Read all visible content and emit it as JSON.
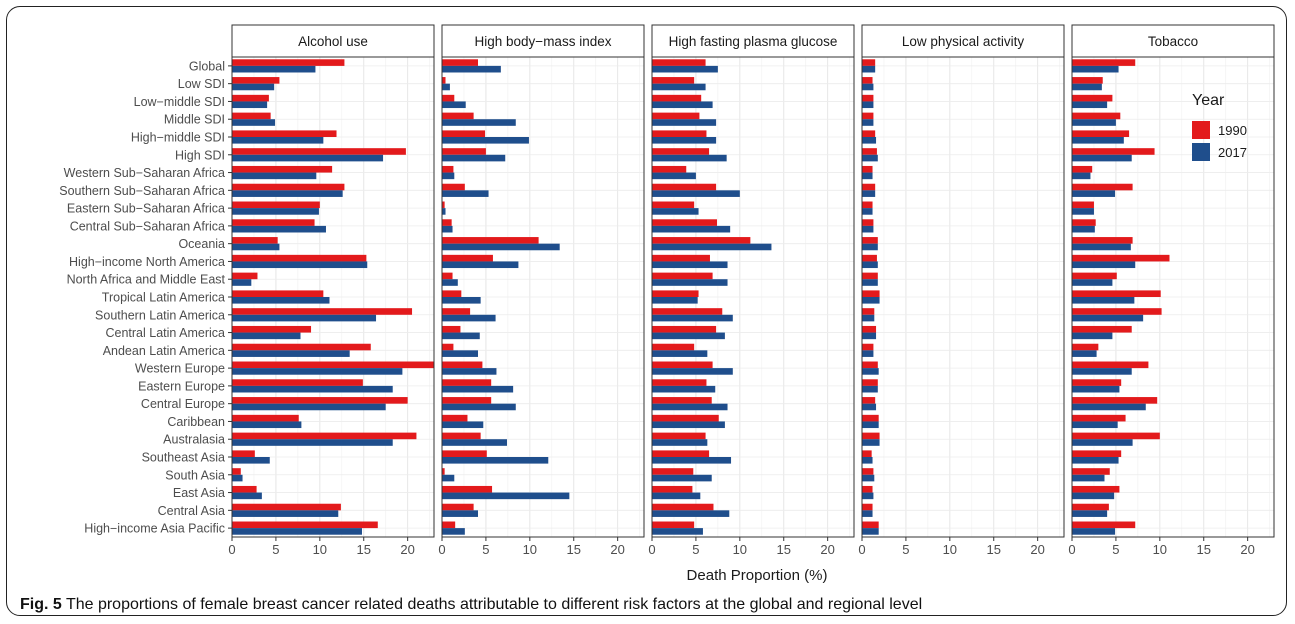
{
  "caption": {
    "label": "Fig. 5",
    "text": "The proportions of female breast cancer related deaths attributable to different risk factors at the global and regional level"
  },
  "chart_data": {
    "type": "bar",
    "orientation": "horizontal",
    "layout": "faceted",
    "xlabel": "Death Proportion (%)",
    "ylabel": "",
    "xlim": [
      0,
      23
    ],
    "xticks": [
      0,
      5,
      10,
      15,
      20
    ],
    "grid": true,
    "legend": {
      "title": "Year",
      "position": "right"
    },
    "colors": {
      "1990": "#e31a1c",
      "2017": "#1f4e8c"
    },
    "categories": [
      "Global",
      "Low SDI",
      "Low−middle SDI",
      "Middle SDI",
      "High−middle SDI",
      "High SDI",
      "Western Sub−Saharan Africa",
      "Southern Sub−Saharan Africa",
      "Eastern Sub−Saharan Africa",
      "Central Sub−Saharan Africa",
      "Oceania",
      "High−income North America",
      "North Africa and Middle East",
      "Tropical Latin America",
      "Southern Latin America",
      "Central Latin America",
      "Andean Latin America",
      "Western Europe",
      "Eastern Europe",
      "Central Europe",
      "Caribbean",
      "Australasia",
      "Southeast Asia",
      "South Asia",
      "East Asia",
      "Central Asia",
      "High−income Asia Pacific"
    ],
    "panels": [
      {
        "title": "Alcohol use",
        "series": [
          {
            "name": "1990",
            "values": [
              12.8,
              5.4,
              4.2,
              4.4,
              11.9,
              19.8,
              11.4,
              12.8,
              10.0,
              9.4,
              5.2,
              15.3,
              2.9,
              10.4,
              20.5,
              9.0,
              15.8,
              23.0,
              14.9,
              20.0,
              7.6,
              21.0,
              2.6,
              1.0,
              2.8,
              12.4,
              16.6
            ]
          },
          {
            "name": "2017",
            "values": [
              9.5,
              4.8,
              4.0,
              4.9,
              10.4,
              17.2,
              9.6,
              12.6,
              9.9,
              10.7,
              5.4,
              15.4,
              2.2,
              11.1,
              16.4,
              7.8,
              13.4,
              19.4,
              18.3,
              17.5,
              7.9,
              18.3,
              4.3,
              1.2,
              3.4,
              12.1,
              14.8
            ]
          }
        ]
      },
      {
        "title": "High body−mass index",
        "series": [
          {
            "name": "1990",
            "values": [
              4.1,
              0.4,
              1.4,
              3.6,
              4.9,
              5.0,
              1.3,
              2.6,
              0.3,
              1.1,
              11.0,
              5.8,
              1.2,
              2.2,
              3.2,
              2.1,
              1.3,
              4.6,
              5.6,
              5.6,
              2.9,
              4.4,
              5.1,
              0.3,
              5.7,
              3.6,
              1.5
            ]
          },
          {
            "name": "2017",
            "values": [
              6.7,
              0.9,
              2.7,
              8.4,
              9.9,
              7.2,
              1.4,
              5.3,
              0.4,
              1.2,
              13.4,
              8.7,
              1.8,
              4.4,
              6.1,
              4.3,
              4.1,
              6.2,
              8.1,
              8.4,
              4.7,
              7.4,
              12.1,
              1.4,
              14.5,
              4.1,
              2.6
            ]
          }
        ]
      },
      {
        "title": "High fasting plasma glucose",
        "series": [
          {
            "name": "1990",
            "values": [
              6.1,
              4.8,
              5.6,
              5.4,
              6.2,
              6.5,
              3.9,
              7.3,
              4.8,
              7.4,
              11.2,
              6.6,
              6.9,
              5.3,
              8.0,
              7.3,
              4.8,
              6.9,
              6.2,
              6.8,
              7.6,
              6.1,
              6.5,
              4.7,
              4.6,
              7.0,
              4.8
            ]
          },
          {
            "name": "2017",
            "values": [
              7.5,
              6.1,
              6.9,
              7.3,
              7.3,
              8.5,
              5.0,
              10.0,
              5.3,
              8.9,
              13.6,
              8.6,
              8.6,
              5.2,
              9.2,
              8.3,
              6.3,
              9.2,
              7.2,
              8.6,
              8.3,
              6.3,
              9.0,
              6.8,
              5.5,
              8.8,
              5.8
            ]
          }
        ]
      },
      {
        "title": "Low physical activity",
        "series": [
          {
            "name": "1990",
            "values": [
              1.5,
              1.2,
              1.3,
              1.3,
              1.5,
              1.7,
              1.2,
              1.5,
              1.2,
              1.3,
              1.8,
              1.7,
              1.8,
              2.0,
              1.4,
              1.6,
              1.3,
              1.8,
              1.8,
              1.5,
              1.9,
              2.0,
              1.1,
              1.3,
              1.2,
              1.2,
              1.9
            ]
          },
          {
            "name": "2017",
            "values": [
              1.5,
              1.3,
              1.3,
              1.3,
              1.6,
              1.8,
              1.2,
              1.5,
              1.2,
              1.3,
              1.8,
              1.8,
              1.8,
              2.0,
              1.4,
              1.6,
              1.3,
              1.9,
              1.8,
              1.6,
              1.9,
              2.0,
              1.2,
              1.4,
              1.3,
              1.2,
              1.9
            ]
          }
        ]
      },
      {
        "title": "Tobacco",
        "series": [
          {
            "name": "1990",
            "values": [
              7.2,
              3.5,
              4.6,
              5.5,
              6.5,
              9.4,
              2.3,
              6.9,
              2.5,
              2.7,
              6.9,
              11.1,
              5.1,
              10.1,
              10.2,
              6.8,
              3.0,
              8.7,
              5.6,
              9.7,
              6.1,
              10.0,
              5.6,
              4.3,
              5.4,
              4.2,
              7.2
            ]
          },
          {
            "name": "2017",
            "values": [
              5.3,
              3.4,
              4.0,
              5.0,
              5.9,
              6.8,
              2.1,
              4.9,
              2.5,
              2.6,
              6.7,
              7.2,
              4.6,
              7.1,
              8.1,
              4.6,
              2.8,
              6.8,
              5.4,
              8.4,
              5.2,
              6.9,
              5.3,
              3.7,
              4.8,
              4.0,
              4.9
            ]
          }
        ]
      }
    ]
  }
}
